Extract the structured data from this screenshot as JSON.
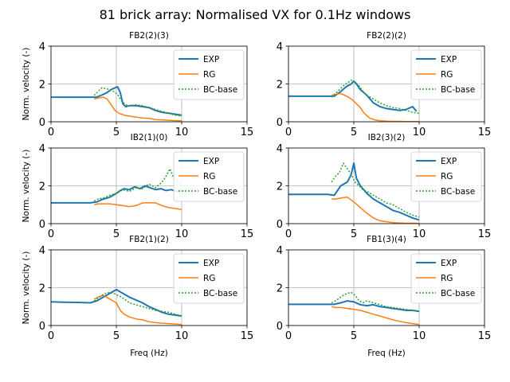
{
  "figure": {
    "title": "81 brick array: Normalised VX for 0.1Hz windows",
    "colors": {
      "EXP": "#1f77b4",
      "RG": "#ff7f0e",
      "BC-base": "#2ca02c",
      "grid": "#b0b0b0"
    }
  },
  "chart_data": [
    {
      "type": "line",
      "title": "FB2(2)(3)",
      "xlabel": "",
      "ylabel": "Norm. velocity (-)",
      "xlim": [
        0,
        15
      ],
      "ylim": [
        0,
        4
      ],
      "xticks": [
        "0",
        "5",
        "10",
        "15"
      ],
      "yticks": [
        "0",
        "2",
        "4"
      ],
      "grid": true,
      "legend": "upper right",
      "series": [
        {
          "name": "EXP",
          "style": "solid",
          "x": [
            0,
            1,
            2,
            3,
            3.5,
            4,
            4.3,
            4.6,
            4.9,
            5.1,
            5.3,
            5.5,
            5.7,
            6,
            6.5,
            7,
            7.5,
            8,
            8.5,
            9,
            9.5,
            10
          ],
          "y": [
            1.3,
            1.3,
            1.3,
            1.3,
            1.3,
            1.45,
            1.55,
            1.7,
            1.8,
            1.85,
            1.55,
            0.95,
            0.8,
            0.85,
            0.85,
            0.8,
            0.75,
            0.6,
            0.5,
            0.45,
            0.4,
            0.35
          ]
        },
        {
          "name": "RG",
          "style": "solid",
          "x": [
            3.3,
            3.6,
            4,
            4.3,
            4.6,
            4.9,
            5.2,
            5.6,
            6,
            6.5,
            7,
            7.5,
            8,
            8.5,
            9,
            9.5,
            10
          ],
          "y": [
            1.2,
            1.25,
            1.3,
            1.2,
            0.9,
            0.6,
            0.45,
            0.35,
            0.3,
            0.25,
            0.2,
            0.18,
            0.12,
            0.1,
            0.08,
            0.06,
            0.05
          ]
        },
        {
          "name": "BC-base",
          "style": "dotted",
          "x": [
            3.3,
            3.6,
            3.9,
            4.2,
            4.5,
            4.8,
            5.1,
            5.4,
            5.7,
            6,
            6.5,
            7,
            7.5,
            8,
            8.5,
            9,
            9.5,
            10
          ],
          "y": [
            1.4,
            1.6,
            1.8,
            1.75,
            1.7,
            1.6,
            1.45,
            1.1,
            0.9,
            0.85,
            0.9,
            0.85,
            0.75,
            0.65,
            0.55,
            0.45,
            0.35,
            0.3
          ]
        }
      ]
    },
    {
      "type": "line",
      "title": "FB2(2)(2)",
      "xlabel": "",
      "ylabel": "",
      "xlim": [
        0,
        15
      ],
      "ylim": [
        0,
        4
      ],
      "xticks": [
        "0",
        "5",
        "10",
        "15"
      ],
      "yticks": [
        "0",
        "2",
        "4"
      ],
      "grid": true,
      "legend": "upper right",
      "series": [
        {
          "name": "EXP",
          "style": "solid",
          "x": [
            0,
            1,
            2,
            3,
            3.5,
            4,
            4.4,
            4.8,
            5,
            5.2,
            5.5,
            6,
            6.5,
            7,
            7.5,
            8,
            8.5,
            9,
            9.5,
            9.8
          ],
          "y": [
            1.35,
            1.35,
            1.35,
            1.35,
            1.35,
            1.6,
            1.85,
            2.0,
            2.15,
            2.0,
            1.7,
            1.4,
            1.0,
            0.8,
            0.7,
            0.65,
            0.6,
            0.65,
            0.8,
            0.55
          ]
        },
        {
          "name": "RG",
          "style": "solid",
          "x": [
            3.3,
            3.6,
            4,
            4.3,
            4.6,
            4.9,
            5.2,
            5.5,
            5.8,
            6.2,
            6.6,
            7,
            7.5,
            8,
            8.5,
            9,
            9.5,
            10
          ],
          "y": [
            1.4,
            1.45,
            1.5,
            1.4,
            1.3,
            1.15,
            0.95,
            0.75,
            0.45,
            0.2,
            0.1,
            0.05,
            0.03,
            0.02,
            0.02,
            0.01,
            0.01,
            0.01
          ]
        },
        {
          "name": "BC-base",
          "style": "dotted",
          "x": [
            3.3,
            3.6,
            3.9,
            4.2,
            4.5,
            4.8,
            5.1,
            5.4,
            5.7,
            6,
            6.5,
            7,
            7.5,
            8,
            8.5,
            9,
            9.5,
            10
          ],
          "y": [
            1.3,
            1.5,
            1.7,
            1.9,
            2.05,
            2.2,
            2.1,
            1.9,
            1.6,
            1.4,
            1.2,
            1.0,
            0.85,
            0.75,
            0.7,
            0.6,
            0.5,
            0.45
          ]
        }
      ]
    },
    {
      "type": "line",
      "title": "IB2(1)(0)",
      "xlabel": "",
      "ylabel": "Norm. velocity (-)",
      "xlim": [
        0,
        15
      ],
      "ylim": [
        0,
        4
      ],
      "xticks": [
        "0",
        "5",
        "10",
        "15"
      ],
      "yticks": [
        "0",
        "2",
        "4"
      ],
      "grid": true,
      "legend": "upper right",
      "series": [
        {
          "name": "EXP",
          "style": "solid",
          "x": [
            0,
            1,
            2,
            3,
            3.5,
            4,
            4.5,
            5,
            5.3,
            5.6,
            6,
            6.4,
            6.8,
            7.2,
            7.6,
            8,
            8.4,
            8.8,
            9.2,
            9.6,
            10
          ],
          "y": [
            1.1,
            1.1,
            1.1,
            1.1,
            1.15,
            1.3,
            1.4,
            1.6,
            1.75,
            1.85,
            1.8,
            1.95,
            1.85,
            2.0,
            1.9,
            1.8,
            1.85,
            1.75,
            1.8,
            1.7,
            1.75
          ]
        },
        {
          "name": "RG",
          "style": "solid",
          "x": [
            3.3,
            3.6,
            4,
            4.5,
            5,
            5.5,
            6,
            6.5,
            7,
            7.5,
            8,
            8.5,
            9,
            9.5,
            10
          ],
          "y": [
            1.0,
            1.05,
            1.05,
            1.05,
            1.0,
            0.95,
            0.9,
            0.95,
            1.1,
            1.1,
            1.1,
            0.95,
            0.85,
            0.8,
            0.75
          ]
        },
        {
          "name": "BC-base",
          "style": "dotted",
          "x": [
            3.3,
            3.6,
            4,
            4.5,
            5,
            5.5,
            6,
            6.5,
            7,
            7.5,
            8,
            8.5,
            8.8,
            9.1,
            9.4,
            9.7,
            10
          ],
          "y": [
            1.2,
            1.3,
            1.35,
            1.5,
            1.6,
            1.8,
            1.7,
            1.9,
            1.85,
            2.1,
            1.9,
            2.2,
            2.5,
            2.9,
            2.4,
            2.2,
            2.0
          ]
        }
      ]
    },
    {
      "type": "line",
      "title": "IB2(3)(2)",
      "xlabel": "",
      "ylabel": "",
      "xlim": [
        0,
        15
      ],
      "ylim": [
        0,
        4
      ],
      "xticks": [
        "0",
        "5",
        "10",
        "15"
      ],
      "yticks": [
        "0",
        "2",
        "4"
      ],
      "grid": true,
      "legend": "upper right",
      "series": [
        {
          "name": "EXP",
          "style": "solid",
          "x": [
            0,
            1,
            2,
            3,
            3.5,
            4,
            4.5,
            4.8,
            5,
            5.2,
            5.5,
            6,
            6.5,
            7,
            7.5,
            8,
            8.5,
            9,
            9.5,
            10
          ],
          "y": [
            1.55,
            1.55,
            1.55,
            1.55,
            1.5,
            2.0,
            2.2,
            2.6,
            3.2,
            2.4,
            2.0,
            1.6,
            1.3,
            1.1,
            0.9,
            0.7,
            0.6,
            0.45,
            0.3,
            0.2
          ]
        },
        {
          "name": "RG",
          "style": "solid",
          "x": [
            3.3,
            3.6,
            4,
            4.5,
            5,
            5.5,
            6,
            6.5,
            7,
            7.5,
            8,
            8.5,
            9,
            9.5,
            10
          ],
          "y": [
            1.3,
            1.3,
            1.35,
            1.4,
            1.15,
            0.85,
            0.55,
            0.3,
            0.15,
            0.1,
            0.05,
            0.03,
            0.02,
            0.02,
            0.01
          ]
        },
        {
          "name": "BC-base",
          "style": "dotted",
          "x": [
            3.3,
            3.6,
            3.9,
            4.2,
            4.5,
            4.8,
            5.1,
            5.4,
            5.7,
            6,
            6.5,
            7,
            7.5,
            8,
            8.5,
            9,
            9.5,
            10
          ],
          "y": [
            2.2,
            2.5,
            2.7,
            3.2,
            2.9,
            2.6,
            2.2,
            2.0,
            1.8,
            1.7,
            1.5,
            1.3,
            1.1,
            1.0,
            0.8,
            0.6,
            0.45,
            0.35
          ]
        }
      ]
    },
    {
      "type": "line",
      "title": "FB2(1)(2)",
      "xlabel": "Freq (Hz)",
      "ylabel": "Norm. velocity (-)",
      "xlim": [
        0,
        15
      ],
      "ylim": [
        0,
        4
      ],
      "xticks": [
        "0",
        "5",
        "10",
        "15"
      ],
      "yticks": [
        "0",
        "2",
        "4"
      ],
      "grid": true,
      "legend": "upper right",
      "series": [
        {
          "name": "EXP",
          "style": "solid",
          "x": [
            0,
            1,
            2,
            3,
            3.5,
            4,
            4.5,
            5,
            5.5,
            6,
            6.5,
            7,
            7.5,
            8,
            8.5,
            9,
            9.5,
            10
          ],
          "y": [
            1.25,
            1.23,
            1.22,
            1.2,
            1.3,
            1.5,
            1.7,
            1.9,
            1.7,
            1.5,
            1.35,
            1.2,
            1.0,
            0.85,
            0.7,
            0.6,
            0.55,
            0.5
          ]
        },
        {
          "name": "RG",
          "style": "solid",
          "x": [
            3.3,
            3.6,
            4,
            4.5,
            5,
            5.3,
            5.6,
            6,
            6.5,
            7,
            7.5,
            8,
            8.5,
            9,
            9.5,
            10
          ],
          "y": [
            1.4,
            1.5,
            1.6,
            1.4,
            1.2,
            0.8,
            0.6,
            0.45,
            0.35,
            0.3,
            0.2,
            0.15,
            0.12,
            0.1,
            0.08,
            0.05
          ]
        },
        {
          "name": "BC-base",
          "style": "dotted",
          "x": [
            3.3,
            3.6,
            3.9,
            4.2,
            4.5,
            4.8,
            5.1,
            5.4,
            5.7,
            6,
            6.5,
            7,
            7.5,
            8,
            8.5,
            9,
            9.5,
            10
          ],
          "y": [
            1.3,
            1.45,
            1.6,
            1.7,
            1.75,
            1.7,
            1.6,
            1.5,
            1.35,
            1.2,
            1.1,
            1.0,
            0.9,
            0.8,
            0.75,
            0.7,
            0.6,
            0.5
          ]
        }
      ]
    },
    {
      "type": "line",
      "title": "FB1(3)(4)",
      "xlabel": "Freq (Hz)",
      "ylabel": "",
      "xlim": [
        0,
        15
      ],
      "ylim": [
        0,
        4
      ],
      "xticks": [
        "0",
        "5",
        "10",
        "15"
      ],
      "yticks": [
        "0",
        "2",
        "4"
      ],
      "grid": true,
      "legend": "upper right",
      "series": [
        {
          "name": "EXP",
          "style": "solid",
          "x": [
            0,
            1,
            2,
            3,
            3.5,
            4,
            4.5,
            5,
            5.5,
            6,
            6.5,
            7,
            7.5,
            8,
            8.5,
            9,
            9.5,
            10
          ],
          "y": [
            1.12,
            1.12,
            1.12,
            1.12,
            1.12,
            1.2,
            1.3,
            1.25,
            1.1,
            1.05,
            1.1,
            1.0,
            0.95,
            0.9,
            0.85,
            0.8,
            0.8,
            0.75
          ]
        },
        {
          "name": "RG",
          "style": "solid",
          "x": [
            3.3,
            3.6,
            4,
            4.5,
            5,
            5.5,
            6,
            6.5,
            7,
            7.5,
            8,
            8.5,
            9,
            9.5,
            10
          ],
          "y": [
            1.0,
            0.95,
            0.95,
            0.9,
            0.85,
            0.8,
            0.7,
            0.6,
            0.5,
            0.4,
            0.3,
            0.22,
            0.15,
            0.1,
            0.05
          ]
        },
        {
          "name": "BC-base",
          "style": "dotted",
          "x": [
            3.3,
            3.6,
            3.9,
            4.2,
            4.5,
            4.8,
            5.1,
            5.4,
            5.7,
            6,
            6.5,
            7,
            7.5,
            8,
            8.5,
            9,
            9.5,
            10
          ],
          "y": [
            1.2,
            1.3,
            1.45,
            1.6,
            1.7,
            1.75,
            1.6,
            1.3,
            1.2,
            1.3,
            1.2,
            1.1,
            1.0,
            0.95,
            0.9,
            0.85,
            0.8,
            0.75
          ]
        }
      ]
    }
  ]
}
